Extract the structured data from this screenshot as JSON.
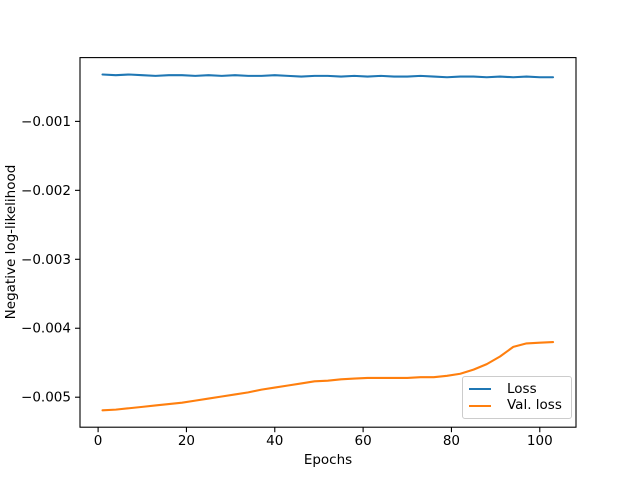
{
  "figure": {
    "background": "#ffffff",
    "spine_color": "#000000",
    "tick_color": "#000000"
  },
  "chart_data": {
    "type": "line",
    "title": "",
    "xlabel": "Epochs",
    "ylabel": "Negative log-likelihood",
    "grid": false,
    "xlim": [
      -4.1,
      108.2
    ],
    "ylim": [
      -0.005435,
      -7.5e-05
    ],
    "x_ticks": [
      0,
      20,
      40,
      60,
      80,
      100
    ],
    "x_tick_labels": [
      "0",
      "20",
      "40",
      "60",
      "80",
      "100"
    ],
    "y_ticks": [
      -0.001,
      -0.002,
      -0.003,
      -0.004,
      -0.005
    ],
    "y_tick_labels": [
      "−0.001",
      "−0.002",
      "−0.003",
      "−0.004",
      "−0.005"
    ],
    "legend": {
      "position": "lower right",
      "entries": [
        "Loss",
        "Val. loss"
      ]
    },
    "x": [
      1,
      4,
      7,
      10,
      13,
      16,
      19,
      22,
      25,
      28,
      31,
      34,
      37,
      40,
      43,
      46,
      49,
      52,
      55,
      58,
      61,
      64,
      67,
      70,
      73,
      76,
      79,
      82,
      85,
      88,
      91,
      94,
      97,
      100,
      103
    ],
    "series": [
      {
        "name": "Loss",
        "color": "#1f77b4",
        "values": [
          -0.00032,
          -0.00033,
          -0.00032,
          -0.00033,
          -0.00034,
          -0.00033,
          -0.00033,
          -0.00034,
          -0.00033,
          -0.00034,
          -0.00033,
          -0.00034,
          -0.00034,
          -0.00033,
          -0.00034,
          -0.00035,
          -0.00034,
          -0.00034,
          -0.00035,
          -0.00034,
          -0.00035,
          -0.00034,
          -0.00035,
          -0.00035,
          -0.00034,
          -0.00035,
          -0.00036,
          -0.00035,
          -0.00035,
          -0.00036,
          -0.00035,
          -0.00036,
          -0.00035,
          -0.00036,
          -0.00036
        ]
      },
      {
        "name": "Val. loss",
        "color": "#ff7f0e",
        "values": [
          -0.00519,
          -0.00518,
          -0.00516,
          -0.00514,
          -0.00512,
          -0.0051,
          -0.00508,
          -0.00505,
          -0.00502,
          -0.00499,
          -0.00496,
          -0.00493,
          -0.00489,
          -0.00486,
          -0.00483,
          -0.0048,
          -0.00477,
          -0.00476,
          -0.00474,
          -0.00473,
          -0.00472,
          -0.00472,
          -0.00472,
          -0.00472,
          -0.00471,
          -0.00471,
          -0.00469,
          -0.00466,
          -0.0046,
          -0.00452,
          -0.00441,
          -0.00427,
          -0.00422,
          -0.00421,
          -0.0042
        ]
      }
    ]
  }
}
